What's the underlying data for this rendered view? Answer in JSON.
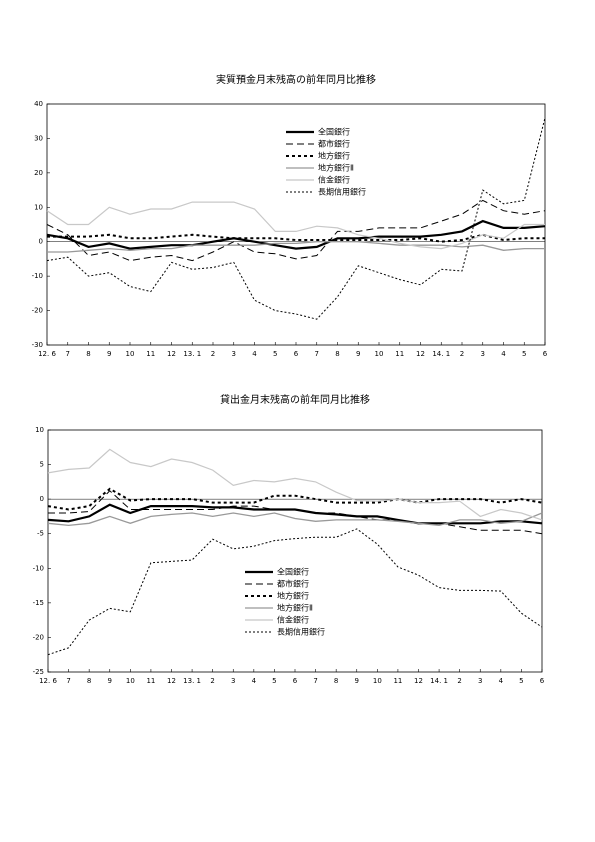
{
  "chart_data": [
    {
      "type": "line",
      "title": "実質預金月末残高の前年同月比推移",
      "categories": [
        "12. 6",
        "7",
        "8",
        "9",
        "10",
        "11",
        "12",
        "13. 1",
        "2",
        "3",
        "4",
        "5",
        "6",
        "7",
        "8",
        "9",
        "10",
        "11",
        "12",
        "14. 1",
        "2",
        "3",
        "4",
        "5",
        "6"
      ],
      "ylim": [
        -30,
        40
      ],
      "yticks": [
        -30,
        -20,
        -10,
        0,
        10,
        20,
        30,
        40
      ],
      "legend": "upper center",
      "series": [
        {
          "name": "全国銀行",
          "color": "#000000",
          "linewidth": 2.2,
          "linestyle": "solid",
          "values": [
            2,
            1,
            -1.5,
            -0.5,
            -2,
            -1.5,
            -1,
            -1,
            0,
            1,
            0,
            -1,
            -2,
            -1.5,
            1,
            1,
            1.5,
            1.5,
            1.5,
            2,
            3,
            6,
            4,
            4,
            4.5
          ]
        },
        {
          "name": "都市銀行",
          "color": "#000000",
          "linewidth": 1,
          "linestyle": "dashed",
          "values": [
            5,
            2,
            -4,
            -3,
            -5.5,
            -4.5,
            -4,
            -5.5,
            -3,
            0,
            -3,
            -3.5,
            -5,
            -4,
            3,
            3,
            4,
            4,
            4,
            6,
            8,
            12,
            9,
            8,
            9
          ]
        },
        {
          "name": "地方銀行",
          "color": "#000000",
          "linewidth": 2,
          "linestyle": "dotted",
          "values": [
            1.5,
            1.5,
            1.5,
            2,
            1,
            1,
            1.5,
            2,
            1.5,
            1,
            1,
            1,
            0.5,
            0.5,
            0.5,
            0.5,
            0.5,
            0.5,
            1,
            0,
            0.5,
            2,
            0.5,
            1,
            1
          ]
        },
        {
          "name": "地方銀行Ⅱ",
          "color": "#999999",
          "linewidth": 1.3,
          "linestyle": "solid",
          "values": [
            -3,
            -3,
            -2.5,
            -2,
            -2.5,
            -2,
            -2,
            -1,
            -1,
            -1,
            -1,
            -0.5,
            -0.5,
            0,
            0,
            0,
            -0.5,
            -1,
            -1,
            -1,
            -1.5,
            -1,
            -2.5,
            -2,
            -2
          ]
        },
        {
          "name": "信金銀行",
          "color": "#c8c8c8",
          "linewidth": 1.2,
          "linestyle": "solid",
          "values": [
            9,
            5,
            5,
            10,
            8,
            9.5,
            9.5,
            11.5,
            11.5,
            11.5,
            9.5,
            3,
            3,
            4.5,
            4,
            2,
            1,
            -0.5,
            -1.5,
            -2,
            -0.5,
            2,
            1,
            5,
            5
          ]
        },
        {
          "name": "長期信用銀行",
          "color": "#000000",
          "linewidth": 1,
          "linestyle": "dotted",
          "values": [
            -5.5,
            -4.5,
            -10,
            -9,
            -13,
            -14.5,
            -6,
            -8,
            -7.5,
            -6,
            -17,
            -20,
            -21,
            -22.5,
            -16,
            -7,
            -9,
            -11,
            -12.5,
            -8,
            -8.5,
            15,
            11,
            12,
            36
          ]
        }
      ]
    },
    {
      "type": "line",
      "title": "貸出金月末残高の前年同月比推移",
      "categories": [
        "12. 6",
        "7",
        "8",
        "9",
        "10",
        "11",
        "12",
        "13. 1",
        "2",
        "3",
        "4",
        "5",
        "6",
        "7",
        "8",
        "9",
        "10",
        "11",
        "12",
        "14. 1",
        "2",
        "3",
        "4",
        "5",
        "6"
      ],
      "ylim": [
        -25,
        10
      ],
      "yticks": [
        -25,
        -20,
        -15,
        -10,
        -5,
        0,
        5,
        10
      ],
      "legend": "lower center",
      "series": [
        {
          "name": "全国銀行",
          "color": "#000000",
          "linewidth": 2.2,
          "linestyle": "solid",
          "values": [
            -3,
            -3.2,
            -2.5,
            -0.8,
            -2,
            -1,
            -1,
            -1,
            -1.2,
            -1.2,
            -1.5,
            -1.5,
            -1.5,
            -2,
            -2.2,
            -2.5,
            -2.5,
            -3,
            -3.5,
            -3.5,
            -3.5,
            -3.5,
            -3.2,
            -3.2,
            -3.5
          ]
        },
        {
          "name": "都市銀行",
          "color": "#000000",
          "linewidth": 1,
          "linestyle": "dashed",
          "values": [
            -2,
            -2,
            -1.8,
            1.2,
            -1.5,
            -1.5,
            -1.5,
            -1.5,
            -1.5,
            -1,
            -1,
            -1.5,
            -1.5,
            -2,
            -2,
            -2.5,
            -3,
            -3,
            -3.5,
            -3.5,
            -4,
            -4.5,
            -4.5,
            -4.5,
            -5
          ]
        },
        {
          "name": "地方銀行",
          "color": "#000000",
          "linewidth": 2,
          "linestyle": "dotted",
          "values": [
            -1,
            -1.5,
            -1,
            1.5,
            -0.2,
            0,
            0,
            0,
            -0.5,
            -0.5,
            -0.5,
            0.5,
            0.5,
            0,
            -0.5,
            -0.5,
            -0.5,
            0,
            -0.5,
            0,
            0,
            0,
            -0.5,
            0,
            -0.5
          ]
        },
        {
          "name": "地方銀行Ⅱ",
          "color": "#999999",
          "linewidth": 1.3,
          "linestyle": "solid",
          "values": [
            -3.5,
            -3.8,
            -3.5,
            -2.5,
            -3.5,
            -2.5,
            -2.2,
            -2,
            -2.5,
            -2,
            -2.5,
            -2,
            -2.8,
            -3.2,
            -3,
            -3,
            -3,
            -3.2,
            -3.5,
            -3.8,
            -3,
            -3,
            -3.5,
            -3.2,
            -2
          ]
        },
        {
          "name": "信金銀行",
          "color": "#c8c8c8",
          "linewidth": 1.2,
          "linestyle": "solid",
          "values": [
            3.8,
            4.3,
            4.5,
            7.2,
            5.3,
            4.7,
            5.8,
            5.3,
            4.2,
            2,
            2.7,
            2.5,
            3,
            2.5,
            1,
            -0.2,
            -0.3,
            0,
            -0.5,
            -0.5,
            -0.3,
            -2.5,
            -1.5,
            -2,
            -3
          ]
        },
        {
          "name": "長期信用銀行",
          "color": "#000000",
          "linewidth": 1,
          "linestyle": "dotted",
          "values": [
            -22.5,
            -21.5,
            -17.5,
            -15.8,
            -16.3,
            -9.2,
            -9,
            -8.8,
            -5.8,
            -7.2,
            -6.8,
            -6,
            -5.7,
            -5.5,
            -5.5,
            -4.3,
            -6.5,
            -9.8,
            -11,
            -12.8,
            -13.2,
            -13.2,
            -13.3,
            -16.5,
            -18.5
          ]
        }
      ]
    }
  ]
}
